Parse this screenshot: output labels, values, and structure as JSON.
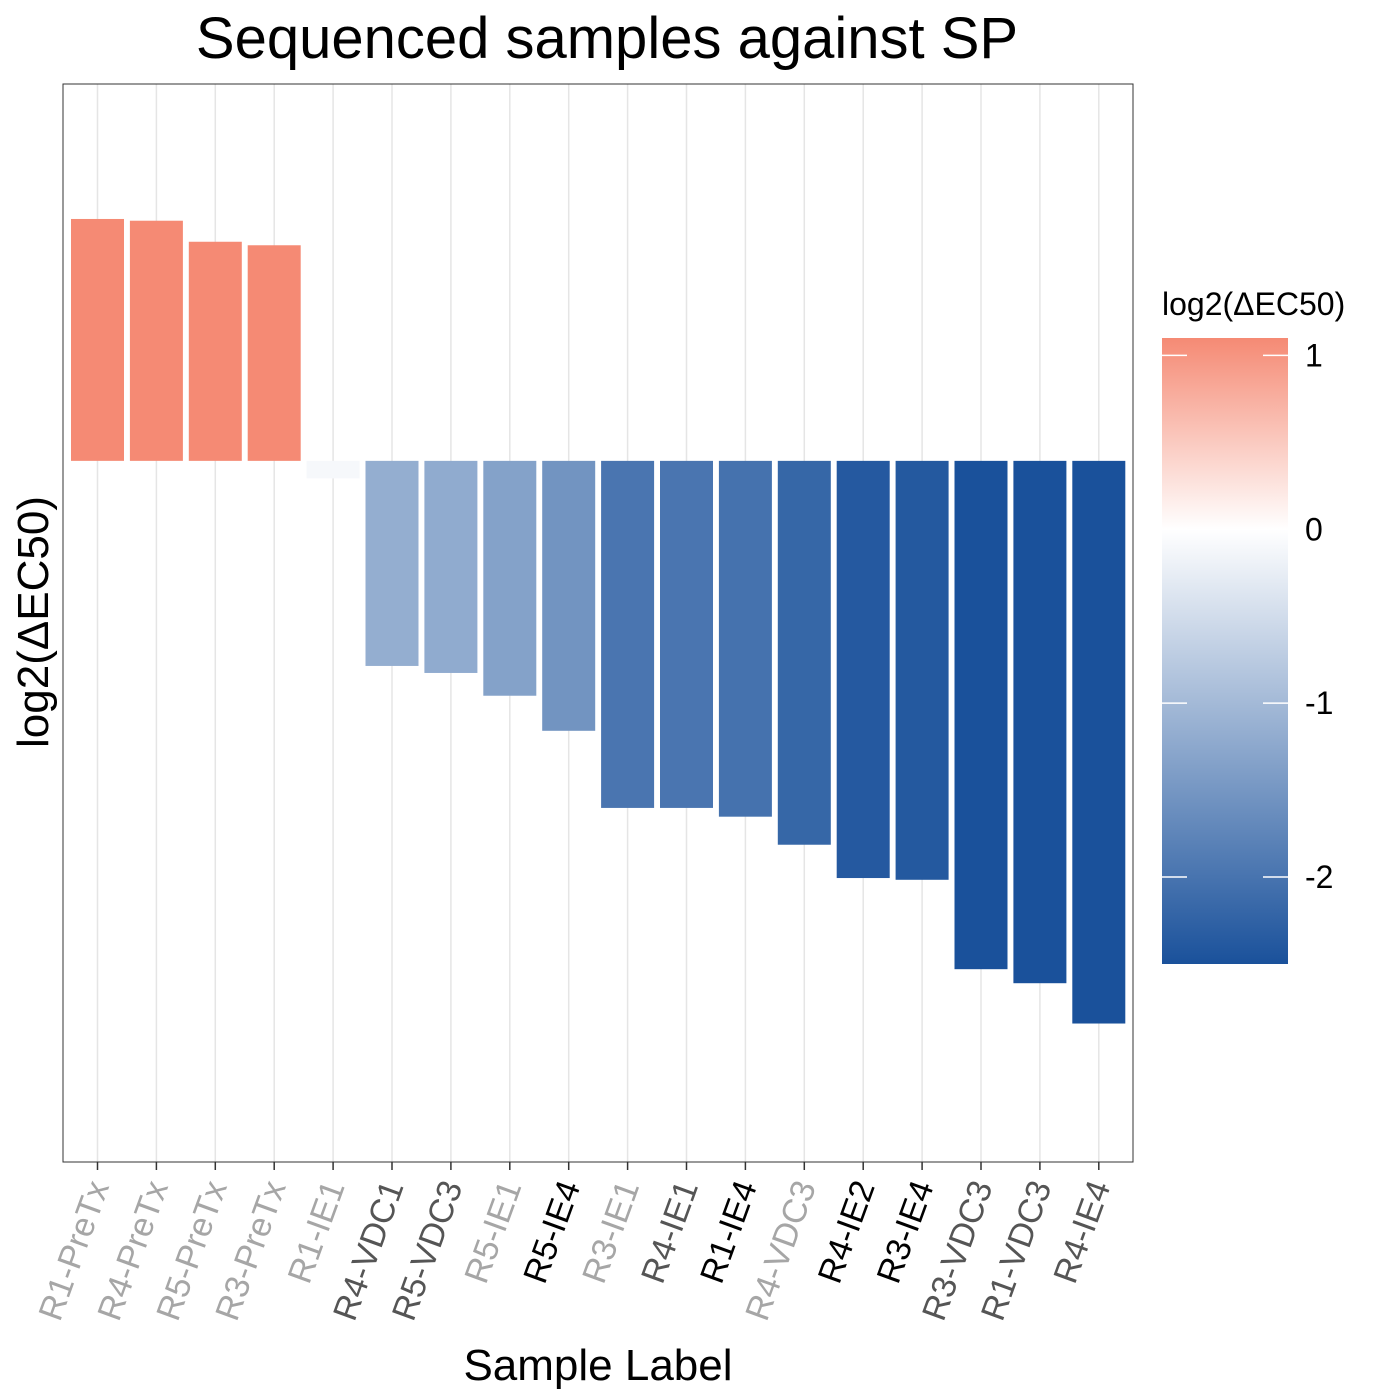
{
  "chart_data": {
    "type": "bar",
    "title": "Sequenced samples against SP",
    "xlabel": "Sample Label",
    "ylabel": "log2(ΔEC50)",
    "categories": [
      "R1-PreTx",
      "R4-PreTx",
      "R5-PreTx",
      "R3-PreTx",
      "R1-IE1",
      "R4-VDC1",
      "R5-VDC3",
      "R5-IE1",
      "R5-IE4",
      "R3-IE1",
      "R4-IE1",
      "R1-IE4",
      "R4-VDC3",
      "R4-IE2",
      "R3-IE4",
      "R3-VDC3",
      "R1-VDC3",
      "R4-IE4"
    ],
    "values": [
      1.38,
      1.37,
      1.25,
      1.23,
      -0.1,
      -1.17,
      -1.21,
      -1.34,
      -1.54,
      -1.98,
      -1.98,
      -2.03,
      -2.19,
      -2.38,
      -2.39,
      -2.9,
      -2.98,
      -3.21
    ],
    "tick_label_colors": [
      "#a6a6a6",
      "#a6a6a6",
      "#a6a6a6",
      "#a6a6a6",
      "#a6a6a6",
      "#555555",
      "#555555",
      "#a6a6a6",
      "#000000",
      "#a6a6a6",
      "#555555",
      "#000000",
      "#a6a6a6",
      "#000000",
      "#000000",
      "#555555",
      "#555555",
      "#555555"
    ],
    "ylim": [
      -4.0,
      2.15
    ],
    "grid": "vertical major gridlines only",
    "legend": {
      "title": "log2(ΔEC50)",
      "placement": "right",
      "type": "continuous gradient",
      "ticks": [
        1,
        0,
        -1,
        -2
      ],
      "tick_labels": [
        "1",
        "0",
        "-1",
        "-2"
      ],
      "range": [
        -2.5,
        1.1
      ],
      "colors": {
        "low": "#1a519b",
        "mid": "#ffffff",
        "high": "#f58a74"
      }
    }
  }
}
